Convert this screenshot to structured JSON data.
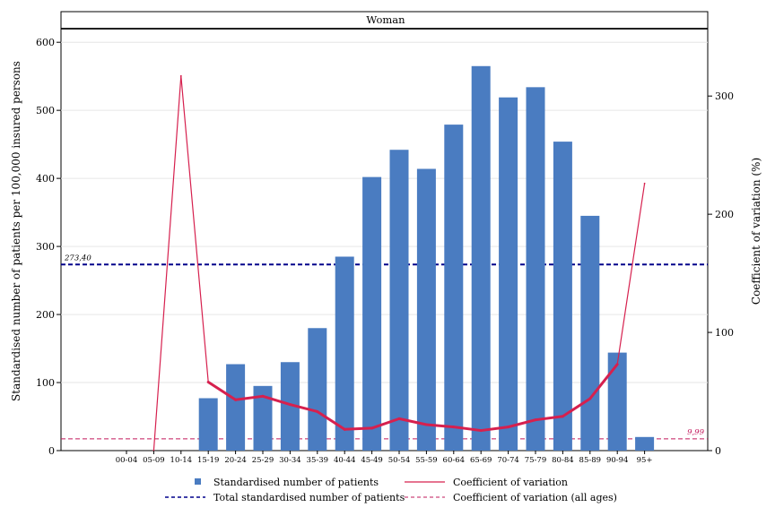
{
  "chart_data": {
    "type": "bar",
    "title": "Woman",
    "categories": [
      "00-04",
      "05-09",
      "10-14",
      "15-19",
      "20-24",
      "25-29",
      "30-34",
      "35-39",
      "40-44",
      "45-49",
      "50-54",
      "55-59",
      "60-64",
      "65-69",
      "70-74",
      "75-79",
      "80-84",
      "85-89",
      "90-94",
      "95+"
    ],
    "series": [
      {
        "name": "Standardised number of patients",
        "type": "bar",
        "axis": "left",
        "color": "#4a7cc1",
        "values": [
          0,
          0,
          0,
          77,
          127,
          95,
          130,
          180,
          285,
          402,
          442,
          414,
          479,
          565,
          519,
          534,
          454,
          345,
          144,
          20
        ]
      },
      {
        "name": "Coefficient of variation",
        "type": "line",
        "axis": "right",
        "color": "#d6204e",
        "values": [
          null,
          0,
          317,
          58,
          43,
          46,
          39,
          33,
          18,
          19,
          27,
          22,
          20,
          17,
          20,
          26,
          29,
          44,
          73,
          226
        ]
      }
    ],
    "reference_lines": [
      {
        "name": "Total standardised number of patients",
        "axis": "left",
        "value": 273.4,
        "label": "273,40",
        "color": "#00008b"
      },
      {
        "name": "Coefficient of variation (all ages)",
        "axis": "right",
        "value": 9.99,
        "label": "9,99",
        "color": "#c2185b"
      }
    ],
    "ylabel": "Standardised number of patients per 100,000 insured persons",
    "ylabel_right": "Coefficient of variation (%)",
    "ylim": [
      0,
      620
    ],
    "ylim_right": [
      0,
      357
    ],
    "yticks": [
      0,
      100,
      200,
      300,
      400,
      500,
      600
    ],
    "yticks_right": [
      0,
      100,
      200,
      300
    ],
    "grid": true,
    "legend_position": "bottom"
  }
}
